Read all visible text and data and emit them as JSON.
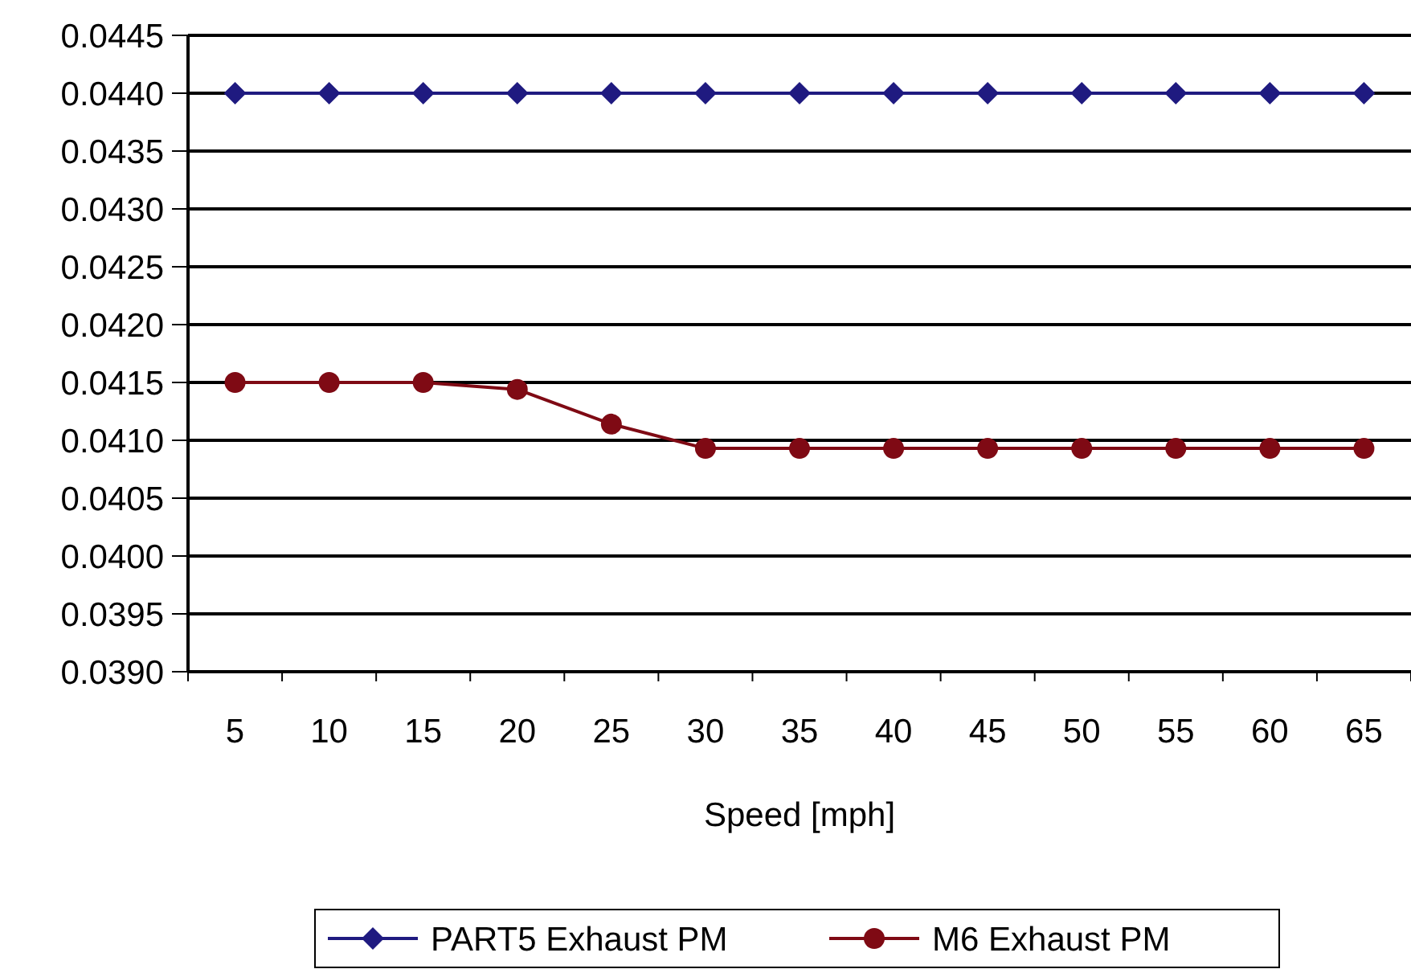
{
  "chart_data": {
    "type": "line",
    "xlabel": "Speed [mph]",
    "categories": [
      "5",
      "10",
      "15",
      "20",
      "25",
      "30",
      "35",
      "40",
      "45",
      "50",
      "55",
      "60",
      "65"
    ],
    "series": [
      {
        "name": "PART5 Exhaust PM",
        "color": "#1f1a80",
        "marker": "diamond",
        "values": [
          0.044,
          0.044,
          0.044,
          0.044,
          0.044,
          0.044,
          0.044,
          0.044,
          0.044,
          0.044,
          0.044,
          0.044,
          0.044
        ]
      },
      {
        "name": "M6 Exhaust PM",
        "color": "#7f0a14",
        "marker": "circle",
        "values": [
          0.0415,
          0.0415,
          0.0415,
          0.04144,
          0.04114,
          0.04093,
          0.04093,
          0.04093,
          0.04093,
          0.04093,
          0.04093,
          0.04093,
          0.04093
        ]
      }
    ],
    "ylim": [
      0.039,
      0.0445
    ],
    "yticks": [
      {
        "value": 0.039,
        "label": "0.0390"
      },
      {
        "value": 0.0395,
        "label": "0.0395"
      },
      {
        "value": 0.04,
        "label": "0.0400"
      },
      {
        "value": 0.0405,
        "label": "0.0405"
      },
      {
        "value": 0.041,
        "label": "0.0410"
      },
      {
        "value": 0.0415,
        "label": "0.0415"
      },
      {
        "value": 0.042,
        "label": "0.0420"
      },
      {
        "value": 0.0425,
        "label": "0.0425"
      },
      {
        "value": 0.043,
        "label": "0.0430"
      },
      {
        "value": 0.0435,
        "label": "0.0435"
      },
      {
        "value": 0.044,
        "label": "0.0440"
      },
      {
        "value": 0.0445,
        "label": "0.0445"
      }
    ],
    "grid": "y",
    "legend": "bottom"
  }
}
